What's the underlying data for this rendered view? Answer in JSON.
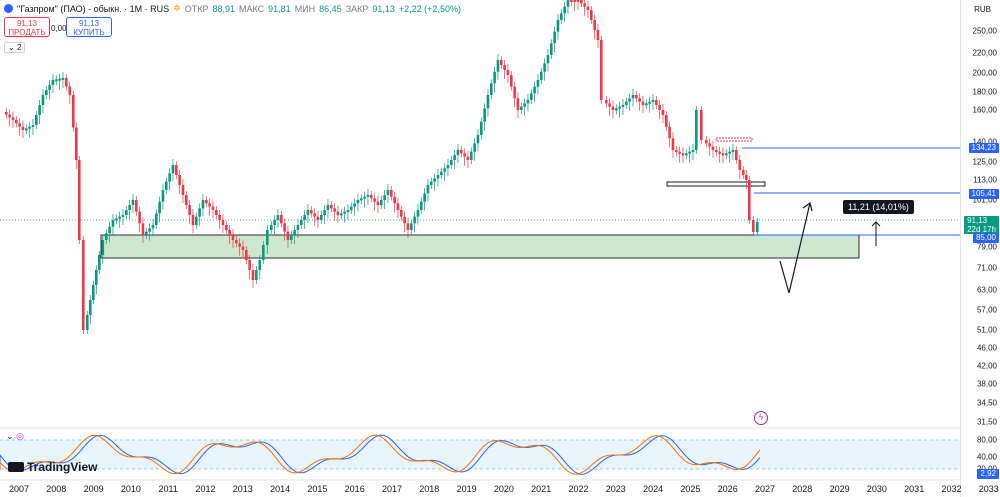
{
  "header": {
    "title": "\"Газпром\" (ПАО) - обыкн. · 1М · RUS",
    "o_label": "ОТКР",
    "o_value": "88,91",
    "h_label": "МАКС",
    "h_value": "91,81",
    "l_label": "МИН",
    "l_value": "86,45",
    "c_label": "ЗАКР",
    "c_value": "91,13",
    "change": "+2,22 (+2,50%)"
  },
  "trade": {
    "sell_price": "91,13",
    "sell_label": "ПРОДАТЬ",
    "spread": "0,00",
    "buy_price": "91,13",
    "buy_label": "КУПИТЬ",
    "indicator_count": "2"
  },
  "price_axis": {
    "currency": "RUB",
    "ticks": [
      "250,00",
      "220,00",
      "200,00",
      "180,00",
      "160,00",
      "140,00",
      "125,00",
      "113,00",
      "101,00",
      "90,00",
      "79,00",
      "71,00",
      "63,00",
      "57,00",
      "51,00",
      "46,00",
      "42,00",
      "38,00",
      "34,50",
      "31,50"
    ],
    "tag_134": "134,23",
    "tag_105": "105,41",
    "tag_last": "91,13",
    "tag_timer": "22d 17h",
    "tag_85": "85,00",
    "colors": {
      "blue": "#2962ff",
      "green": "#089981",
      "red": "#f23645",
      "zone": "#c8e6c9"
    }
  },
  "osc_axis": {
    "ticks": [
      "80,00",
      "40,00",
      "20,00"
    ],
    "tag_last": "2,92"
  },
  "time_axis": [
    "2007",
    "2008",
    "2009",
    "2010",
    "2011",
    "2012",
    "2013",
    "2014",
    "2015",
    "2016",
    "2017",
    "2018",
    "2019",
    "2020",
    "2021",
    "2022",
    "2023",
    "2024",
    "2025",
    "2026",
    "2027",
    "2028",
    "2029",
    "2030",
    "2031",
    "2032",
    "2033"
  ],
  "annotation": {
    "label": "11,21 (14,01%)"
  },
  "branding": {
    "text": "TradingView"
  },
  "icons": {
    "logo": "gazprom-logo-icon",
    "flash": "lightning-icon",
    "collapse": "chevron-down-icon",
    "indicator": "indicator-icon"
  }
}
